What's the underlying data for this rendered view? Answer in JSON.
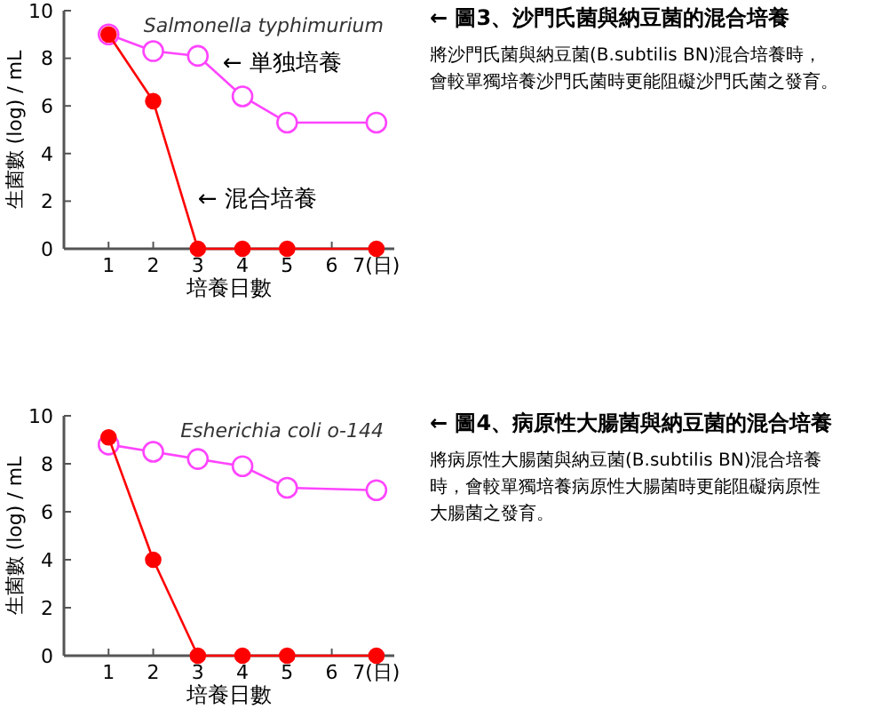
{
  "chart_data": [
    {
      "type": "line",
      "title": "Salmonella typhimurium",
      "xlabel": "培養日數",
      "ylabel": "生菌數 (log) / mL",
      "x": [
        1,
        2,
        3,
        4,
        5,
        7
      ],
      "xlim": [
        0,
        7.4
      ],
      "xticks": [
        1,
        2,
        3,
        4,
        5,
        6,
        {
          "value": 7,
          "label": "7(日)"
        }
      ],
      "ylim": [
        0,
        10
      ],
      "yticks": [
        0,
        2,
        4,
        6,
        8,
        10
      ],
      "marker": "circle",
      "series": [
        {
          "name": "← 単独培養",
          "color": "#ff44ff",
          "values": [
            9,
            8.3,
            8.1,
            6.4,
            5.3,
            5.3
          ]
        },
        {
          "name": "← 混合培養",
          "color": "#ff0000",
          "values": [
            9,
            6.2,
            0,
            0,
            0,
            0
          ]
        }
      ]
    },
    {
      "type": "other",
      "title": "← 圖3、沙門氏菌與納豆菌的混合培養",
      "annotations": [
        "將沙門氏菌與納豆菌(B.subtilis BN)混合培養時，",
        "會較單獨培養沙門氏菌時更能阻礙沙門氏菌之發育。"
      ]
    },
    {
      "type": "line",
      "title": "Esherichia coli o-144",
      "xlabel": "培養日數",
      "ylabel": "生菌數 (log) / mL",
      "x": [
        1,
        2,
        3,
        4,
        5,
        7
      ],
      "xlim": [
        0,
        7.4
      ],
      "xticks": [
        1,
        2,
        3,
        4,
        5,
        6,
        {
          "value": 7,
          "label": "7(日)"
        }
      ],
      "ylim": [
        0,
        10
      ],
      "yticks": [
        0,
        2,
        4,
        6,
        8,
        10
      ],
      "marker": "circle",
      "series": [
        {
          "color": "#ff44ff",
          "values": [
            8.8,
            8.5,
            8.2,
            7.9,
            7.0,
            6.9
          ]
        },
        {
          "color": "#ff0000",
          "values": [
            9.1,
            4,
            0,
            0,
            0,
            0
          ]
        }
      ]
    },
    {
      "type": "other",
      "title": "← 圖4、病原性大腸菌與納豆菌的混合培養",
      "annotations": [
        "將病原性大腸菌與納豆菌(B.subtilis BN)混合培養",
        "時，會較單獨培養病原性大腸菌時更能阻礙病原性",
        "大腸菌之發育。"
      ]
    }
  ]
}
